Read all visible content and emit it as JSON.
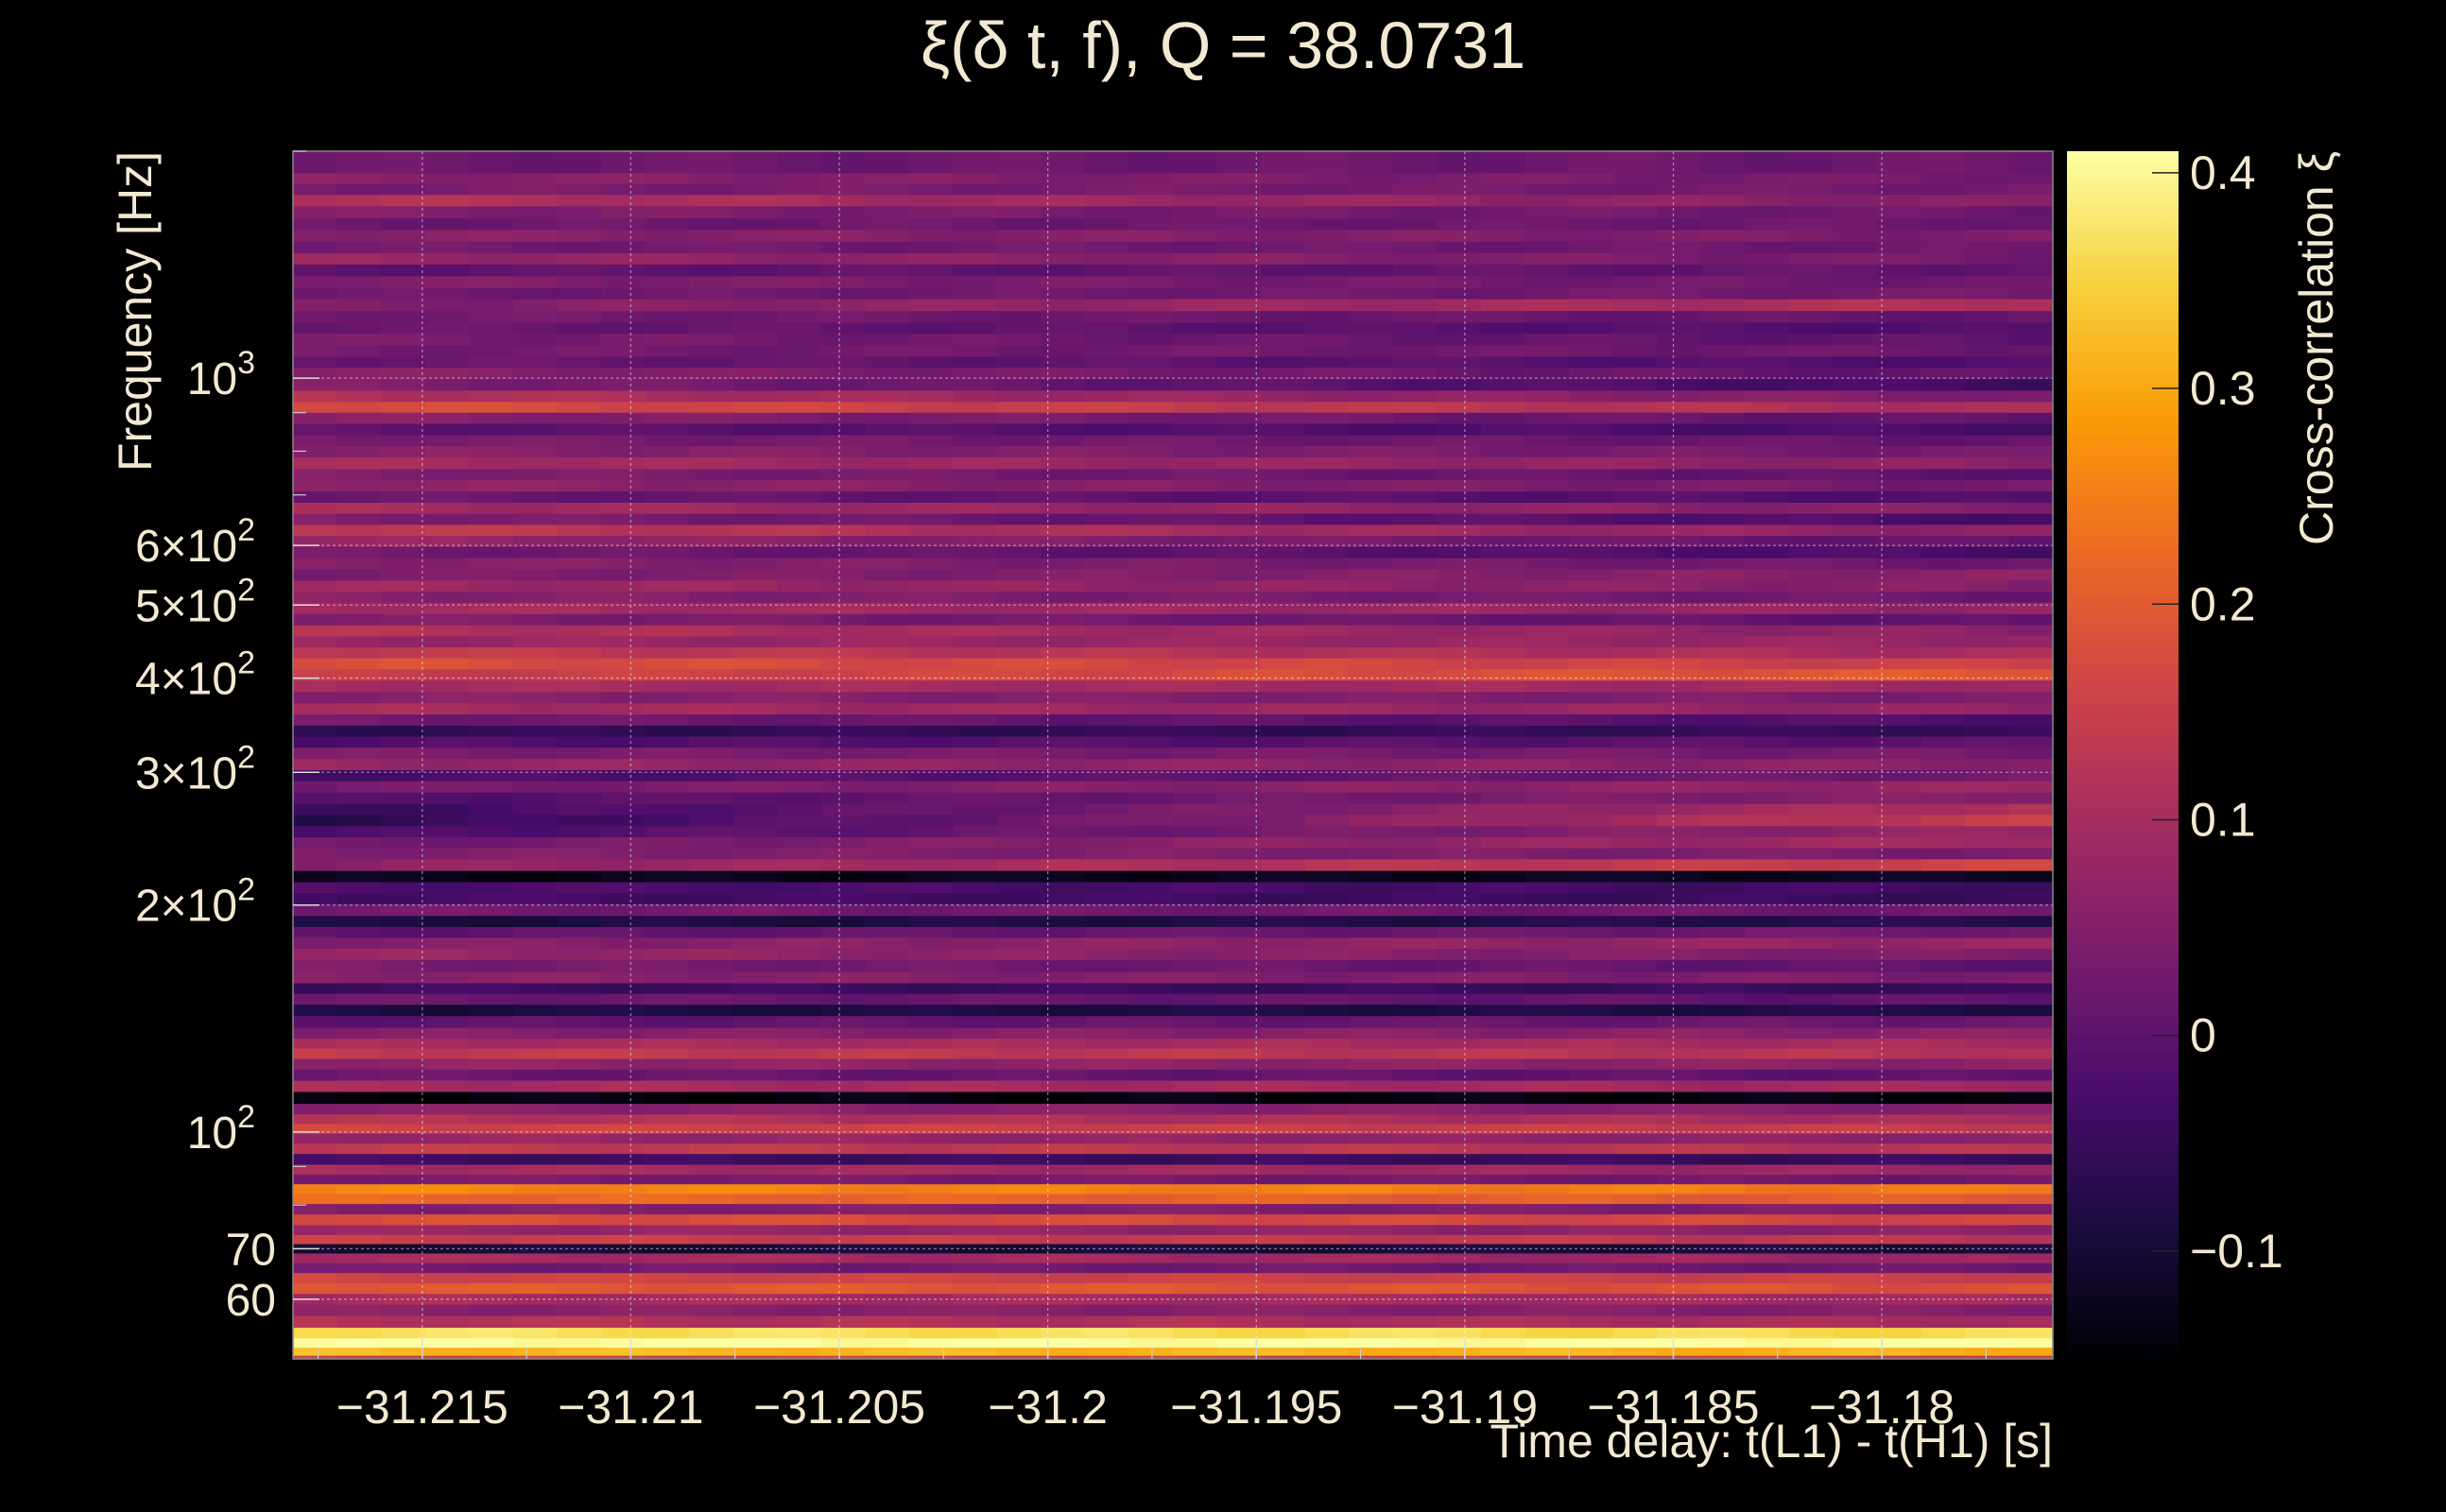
{
  "chart_data": {
    "type": "heatmap",
    "title": "ξ(δ t, f), Q = 38.0731",
    "xlabel": "Time delay: t(L1) - t(H1) [s]",
    "ylabel": "Frequency [Hz]",
    "colorbar_label": "Cross-correlation ξ",
    "x_range": [
      -31.2181,
      -31.1759
    ],
    "y_range": [
      50,
      2000
    ],
    "y_scale": "log",
    "grid": true,
    "x_ticks": [
      {
        "value": -31.215,
        "label": "−31.215"
      },
      {
        "value": -31.21,
        "label": "−31.21"
      },
      {
        "value": -31.205,
        "label": "−31.205"
      },
      {
        "value": -31.2,
        "label": "−31.2"
      },
      {
        "value": -31.195,
        "label": "−31.195"
      },
      {
        "value": -31.19,
        "label": "−31.19"
      },
      {
        "value": -31.185,
        "label": "−31.185"
      },
      {
        "value": -31.18,
        "label": "−31.18"
      }
    ],
    "y_ticks": [
      {
        "value": 60,
        "mantissa": "60",
        "exp": ""
      },
      {
        "value": 70,
        "mantissa": "70",
        "exp": ""
      },
      {
        "value": 100,
        "mantissa": "10",
        "exp": "2"
      },
      {
        "value": 200,
        "mantissa": "2×10",
        "exp": "2"
      },
      {
        "value": 300,
        "mantissa": "3×10",
        "exp": "2"
      },
      {
        "value": 400,
        "mantissa": "4×10",
        "exp": "2"
      },
      {
        "value": 500,
        "mantissa": "5×10",
        "exp": "2"
      },
      {
        "value": 600,
        "mantissa": "6×10",
        "exp": "2"
      },
      {
        "value": 1000,
        "mantissa": "10",
        "exp": "3"
      }
    ],
    "colorbar_range": [
      -0.15,
      0.41
    ],
    "colorbar_ticks": [
      {
        "value": -0.1,
        "label": "−0.1"
      },
      {
        "value": 0,
        "label": "0"
      },
      {
        "value": 0.1,
        "label": "0.1"
      },
      {
        "value": 0.2,
        "label": "0.2"
      },
      {
        "value": 0.3,
        "label": "0.3"
      },
      {
        "value": 0.4,
        "label": "0.4"
      }
    ],
    "colormap": [
      "#000004",
      "#1b0c41",
      "#4a0c6b",
      "#781c6d",
      "#a52c60",
      "#cf4446",
      "#ed6925",
      "#fb9b06",
      "#f7d13d",
      "#fcffa4"
    ],
    "x_samples": [
      -31.218,
      -31.1759
    ],
    "bands": [
      {
        "f": 1900,
        "v": [
          0.02,
          0.02
        ]
      },
      {
        "f": 1840,
        "v": [
          0.06,
          0.03
        ]
      },
      {
        "f": 1780,
        "v": [
          0.04,
          0.03
        ]
      },
      {
        "f": 1720,
        "v": [
          0.12,
          0.05
        ]
      },
      {
        "f": 1660,
        "v": [
          0.05,
          0.02
        ]
      },
      {
        "f": 1600,
        "v": [
          0.02,
          0.02
        ]
      },
      {
        "f": 1545,
        "v": [
          0.06,
          0.04
        ]
      },
      {
        "f": 1490,
        "v": [
          0.03,
          0.02
        ]
      },
      {
        "f": 1440,
        "v": [
          0.08,
          0.03
        ]
      },
      {
        "f": 1390,
        "v": [
          0.0,
          0.01
        ]
      },
      {
        "f": 1340,
        "v": [
          0.05,
          0.02
        ]
      },
      {
        "f": 1295,
        "v": [
          0.02,
          0.03
        ]
      },
      {
        "f": 1250,
        "v": [
          0.04,
          0.12
        ]
      },
      {
        "f": 1205,
        "v": [
          0.03,
          0.01
        ]
      },
      {
        "f": 1165,
        "v": [
          0.02,
          -0.02
        ]
      },
      {
        "f": 1125,
        "v": [
          0.04,
          0.0
        ]
      },
      {
        "f": 1085,
        "v": [
          0.03,
          0.02
        ]
      },
      {
        "f": 1050,
        "v": [
          0.02,
          -0.02
        ]
      },
      {
        "f": 1015,
        "v": [
          0.06,
          0.0
        ]
      },
      {
        "f": 980,
        "v": [
          0.05,
          -0.04
        ]
      },
      {
        "f": 945,
        "v": [
          0.12,
          0.04
        ]
      },
      {
        "f": 915,
        "v": [
          0.18,
          0.1
        ]
      },
      {
        "f": 885,
        "v": [
          0.06,
          0.0
        ]
      },
      {
        "f": 855,
        "v": [
          0.0,
          -0.03
        ]
      },
      {
        "f": 825,
        "v": [
          0.04,
          0.01
        ]
      },
      {
        "f": 800,
        "v": [
          0.06,
          0.03
        ]
      },
      {
        "f": 770,
        "v": [
          0.1,
          0.06
        ]
      },
      {
        "f": 745,
        "v": [
          0.05,
          0.0
        ]
      },
      {
        "f": 720,
        "v": [
          0.07,
          0.03
        ]
      },
      {
        "f": 695,
        "v": [
          0.02,
          -0.02
        ]
      },
      {
        "f": 672,
        "v": [
          0.1,
          0.05
        ]
      },
      {
        "f": 650,
        "v": [
          0.05,
          -0.03
        ]
      },
      {
        "f": 628,
        "v": [
          0.14,
          0.06
        ]
      },
      {
        "f": 607,
        "v": [
          0.08,
          0.0
        ]
      },
      {
        "f": 587,
        "v": [
          0.03,
          -0.03
        ]
      },
      {
        "f": 567,
        "v": [
          0.06,
          0.02
        ]
      },
      {
        "f": 548,
        "v": [
          0.04,
          0.06
        ]
      },
      {
        "f": 530,
        "v": [
          0.09,
          0.05
        ]
      },
      {
        "f": 512,
        "v": [
          0.06,
          0.02
        ]
      },
      {
        "f": 495,
        "v": [
          0.1,
          0.07
        ]
      },
      {
        "f": 478,
        "v": [
          0.05,
          0.0
        ]
      },
      {
        "f": 462,
        "v": [
          0.12,
          0.06
        ]
      },
      {
        "f": 447,
        "v": [
          0.08,
          0.08
        ]
      },
      {
        "f": 432,
        "v": [
          0.14,
          0.1
        ]
      },
      {
        "f": 418,
        "v": [
          0.18,
          0.15
        ]
      },
      {
        "f": 404,
        "v": [
          0.14,
          0.2
        ]
      },
      {
        "f": 390,
        "v": [
          0.1,
          0.09
        ]
      },
      {
        "f": 377,
        "v": [
          0.06,
          0.04
        ]
      },
      {
        "f": 364,
        "v": [
          0.1,
          0.07
        ]
      },
      {
        "f": 352,
        "v": [
          0.03,
          -0.02
        ]
      },
      {
        "f": 340,
        "v": [
          -0.06,
          -0.05
        ]
      },
      {
        "f": 329,
        "v": [
          -0.02,
          0.0
        ]
      },
      {
        "f": 318,
        "v": [
          0.04,
          0.03
        ]
      },
      {
        "f": 307,
        "v": [
          0.08,
          0.06
        ]
      },
      {
        "f": 297,
        "v": [
          -0.03,
          0.03
        ]
      },
      {
        "f": 287,
        "v": [
          0.03,
          0.08
        ]
      },
      {
        "f": 277,
        "v": [
          -0.02,
          0.06
        ]
      },
      {
        "f": 268,
        "v": [
          -0.05,
          0.12
        ]
      },
      {
        "f": 259,
        "v": [
          -0.07,
          0.15
        ]
      },
      {
        "f": 250,
        "v": [
          -0.03,
          0.08
        ]
      },
      {
        "f": 242,
        "v": [
          0.02,
          0.1
        ]
      },
      {
        "f": 234,
        "v": [
          0.05,
          0.04
        ]
      },
      {
        "f": 226,
        "v": [
          0.06,
          0.16
        ]
      },
      {
        "f": 218,
        "v": [
          -0.13,
          -0.12
        ]
      },
      {
        "f": 211,
        "v": [
          -0.02,
          -0.04
        ]
      },
      {
        "f": 204,
        "v": [
          -0.03,
          -0.05
        ]
      },
      {
        "f": 197,
        "v": [
          0.03,
          0.02
        ]
      },
      {
        "f": 190,
        "v": [
          -0.09,
          -0.07
        ]
      },
      {
        "f": 184,
        "v": [
          0.0,
          0.03
        ]
      },
      {
        "f": 178,
        "v": [
          0.05,
          0.08
        ]
      },
      {
        "f": 172,
        "v": [
          0.08,
          0.04
        ]
      },
      {
        "f": 166,
        "v": [
          0.04,
          0.0
        ]
      },
      {
        "f": 160,
        "v": [
          0.06,
          0.04
        ]
      },
      {
        "f": 155,
        "v": [
          -0.04,
          -0.05
        ]
      },
      {
        "f": 150,
        "v": [
          0.02,
          0.0
        ]
      },
      {
        "f": 145,
        "v": [
          -0.09,
          -0.08
        ]
      },
      {
        "f": 140,
        "v": [
          0.0,
          0.02
        ]
      },
      {
        "f": 135,
        "v": [
          0.05,
          0.06
        ]
      },
      {
        "f": 131,
        "v": [
          0.1,
          0.1
        ]
      },
      {
        "f": 127,
        "v": [
          0.14,
          0.12
        ]
      },
      {
        "f": 123,
        "v": [
          0.07,
          0.06
        ]
      },
      {
        "f": 119,
        "v": [
          0.02,
          0.0
        ]
      },
      {
        "f": 115,
        "v": [
          0.1,
          0.09
        ]
      },
      {
        "f": 111,
        "v": [
          -0.14,
          -0.14
        ]
      },
      {
        "f": 107,
        "v": [
          0.06,
          0.05
        ]
      },
      {
        "f": 104,
        "v": [
          0.12,
          0.1
        ]
      },
      {
        "f": 101,
        "v": [
          0.16,
          0.14
        ]
      },
      {
        "f": 98,
        "v": [
          0.08,
          0.06
        ]
      },
      {
        "f": 95,
        "v": [
          0.14,
          0.12
        ]
      },
      {
        "f": 92,
        "v": [
          -0.04,
          -0.05
        ]
      },
      {
        "f": 89,
        "v": [
          0.1,
          0.08
        ]
      },
      {
        "f": 86.5,
        "v": [
          0.04,
          0.02
        ]
      },
      {
        "f": 84,
        "v": [
          0.26,
          0.24
        ]
      },
      {
        "f": 81.5,
        "v": [
          0.22,
          0.2
        ]
      },
      {
        "f": 79,
        "v": [
          0.05,
          0.04
        ]
      },
      {
        "f": 76.5,
        "v": [
          0.18,
          0.16
        ]
      },
      {
        "f": 74,
        "v": [
          0.08,
          0.06
        ]
      },
      {
        "f": 72,
        "v": [
          0.15,
          0.13
        ]
      },
      {
        "f": 70,
        "v": [
          -0.1,
          -0.09
        ]
      },
      {
        "f": 68,
        "v": [
          0.1,
          0.08
        ]
      },
      {
        "f": 66,
        "v": [
          0.03,
          0.02
        ]
      },
      {
        "f": 64,
        "v": [
          0.16,
          0.15
        ]
      },
      {
        "f": 62,
        "v": [
          0.2,
          0.18
        ]
      },
      {
        "f": 60,
        "v": [
          0.1,
          0.09
        ]
      },
      {
        "f": 58,
        "v": [
          0.06,
          0.05
        ]
      },
      {
        "f": 56,
        "v": [
          0.12,
          0.1
        ]
      },
      {
        "f": 54,
        "v": [
          0.37,
          0.36
        ]
      },
      {
        "f": 52.5,
        "v": [
          0.41,
          0.41
        ]
      },
      {
        "f": 51,
        "v": [
          0.32,
          0.31
        ]
      },
      {
        "f": 50,
        "v": [
          0.16,
          0.15
        ]
      }
    ]
  }
}
